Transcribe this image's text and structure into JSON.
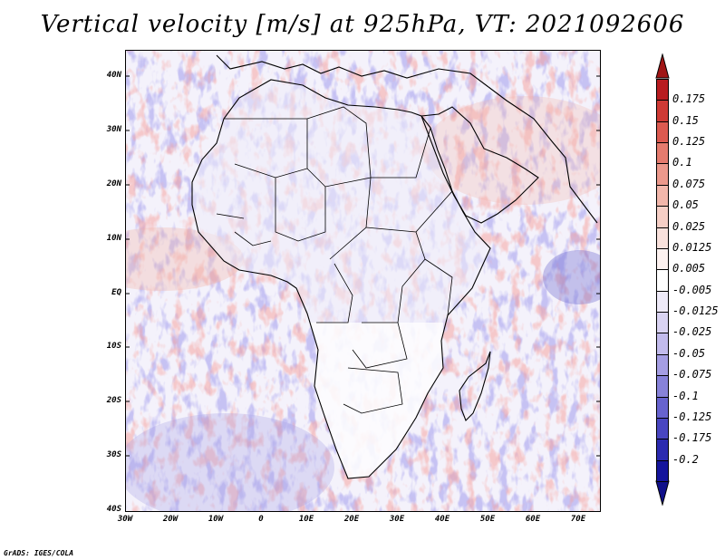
{
  "title": "Vertical velocity [m/s] at 925hPa, VT: 2021092606",
  "footer": "GrADS: IGES/COLA",
  "map": {
    "region": "Africa and surrounding seas",
    "lat_labels": [
      "40N",
      "30N",
      "20N",
      "10N",
      "EQ",
      "10S",
      "20S",
      "30S",
      "40S"
    ],
    "lat_values": [
      40,
      30,
      20,
      10,
      0,
      -10,
      -20,
      -30,
      -40
    ],
    "lon_labels": [
      "30W",
      "20W",
      "10W",
      "0",
      "10E",
      "20E",
      "30E",
      "40E",
      "50E",
      "60E",
      "70E"
    ],
    "lon_values": [
      -30,
      -20,
      -10,
      0,
      10,
      20,
      30,
      40,
      50,
      60,
      70
    ],
    "extent": {
      "lon_min": -30,
      "lon_max": 75,
      "lat_min": -40,
      "lat_max": 45
    }
  },
  "colorbar": {
    "labels": [
      "0.175",
      "0.15",
      "0.125",
      "0.1",
      "0.075",
      "0.05",
      "0.025",
      "0.0125",
      "0.005",
      "-0.005",
      "-0.0125",
      "-0.025",
      "-0.05",
      "-0.075",
      "-0.1",
      "-0.125",
      "-0.175",
      "-0.2"
    ],
    "colors": [
      "#b81c20",
      "#cf3a35",
      "#dc5a50",
      "#e57b6e",
      "#ec998c",
      "#f2b7ab",
      "#f6cfc6",
      "#f9e1dc",
      "#fdf2f0",
      "#ffffff",
      "#eeeaf8",
      "#d9d3f2",
      "#c2bbec",
      "#a59ee3",
      "#8782d9",
      "#6763cf",
      "#4946c1",
      "#2b2ab0",
      "#15159c"
    ],
    "max_color": "#a01515",
    "min_color": "#10108a"
  }
}
